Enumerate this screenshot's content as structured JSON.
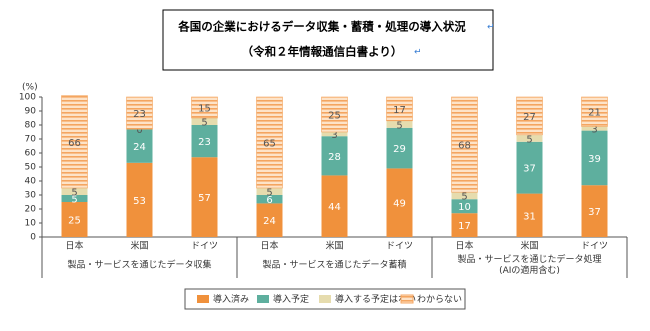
{
  "title_box": {
    "lines": [
      "各国の企業におけるデータ収集・蓄積・処理の導入状況",
      "（令和２年情報通信白書より）"
    ],
    "paragraph_mark": "↵"
  },
  "chart_data": {
    "type": "stacked_bar",
    "y_label": "(%)",
    "categories": [
      "日本",
      "米国",
      "ドイツ",
      "日本",
      "米国",
      "ドイツ",
      "日本",
      "米国",
      "ドイツ"
    ],
    "groups": [
      [
        "製品・サービスを通じたデータ収集"
      ],
      [
        "製品・サービスを通じたデータ蓄積"
      ],
      [
        "製品・サービスを通じたデータ処理",
        "(AIの適用含む)"
      ]
    ],
    "series": [
      {
        "name": "導入済み",
        "color": "#f0913c",
        "values": [
          25,
          53,
          57,
          24,
          44,
          49,
          17,
          31,
          37
        ]
      },
      {
        "name": "導入予定",
        "color": "#5eaf9e",
        "values": [
          5,
          24,
          23,
          6,
          28,
          29,
          10,
          37,
          39
        ]
      },
      {
        "name": "導入する予定はない",
        "color": "#e6dcae",
        "values": [
          5,
          0,
          5,
          5,
          3,
          5,
          5,
          5,
          3
        ]
      },
      {
        "name": "わからない",
        "color": "#fbd4ad",
        "hatch": true,
        "values": [
          66,
          23,
          15,
          65,
          25,
          17,
          68,
          27,
          21
        ]
      }
    ],
    "ylim": [
      0,
      100
    ],
    "yticks": [
      0,
      10,
      20,
      30,
      40,
      50,
      60,
      70,
      80,
      90,
      100
    ],
    "legend": "bottom"
  }
}
